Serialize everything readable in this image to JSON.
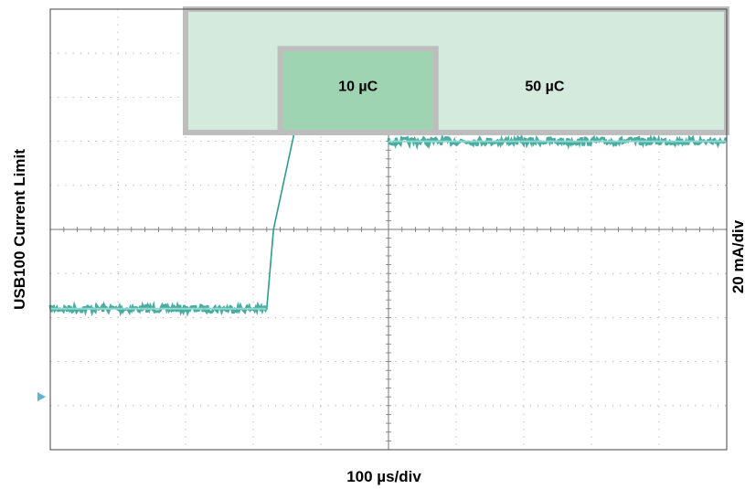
{
  "chart_data": {
    "type": "line",
    "title": "",
    "xlabel": "100 µs/div",
    "ylabel_left": "USB100 Current Limit",
    "ylabel_right": "20 mA/div",
    "grid": true,
    "x_divisions": 10,
    "y_divisions": 10,
    "xlim": [
      0,
      10
    ],
    "ylim": [
      0,
      10
    ],
    "units": {
      "x": "divisions (100 µs/div)",
      "y": "divisions (20 mA/div)"
    },
    "series": [
      {
        "color": "#2a9d8f",
        "x": [
          0,
          3.2,
          3.3,
          4.0,
          5.0,
          10.0
        ],
        "y": [
          3.2,
          3.2,
          5.0,
          10.0,
          7.0,
          7.0
        ]
      }
    ],
    "regions": [
      {
        "label": "50 µC",
        "x_start": 2.0,
        "x_end": 10.0,
        "y_start": 7.2,
        "y_end": 10.0,
        "color": "#d3eadd",
        "border": "#bdbdbd"
      },
      {
        "label": "10 µC",
        "x_start": 3.4,
        "x_end": 5.7,
        "y_start": 7.2,
        "y_end": 9.1,
        "color": "#9fd4b3",
        "border": "#bdbdbd"
      }
    ],
    "ground_marker": {
      "y": 1.2,
      "color": "#5bb6cf"
    }
  }
}
